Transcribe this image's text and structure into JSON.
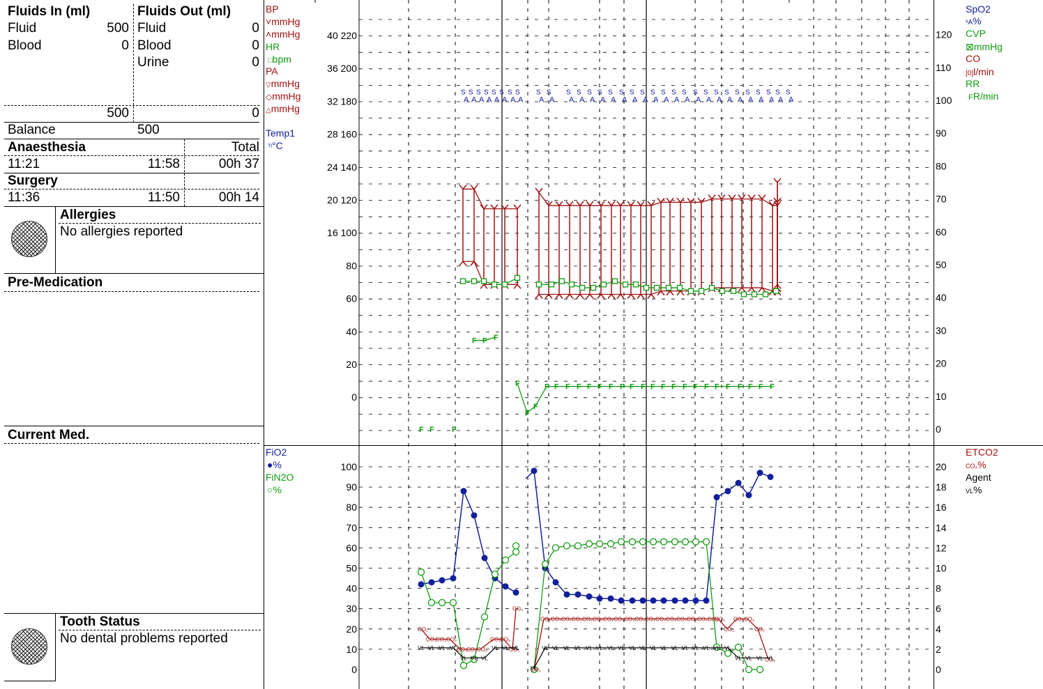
{
  "fluids_in": {
    "title": "Fluids In (ml)",
    "rows": [
      {
        "label": "Fluid",
        "value": "500"
      },
      {
        "label": "Blood",
        "value": "0"
      }
    ],
    "total": "500"
  },
  "fluids_out": {
    "title": "Fluids Out (ml)",
    "rows": [
      {
        "label": "Fluid",
        "value": "0"
      },
      {
        "label": "Blood",
        "value": "0"
      },
      {
        "label": "Urine",
        "value": "0"
      }
    ],
    "total": "0"
  },
  "balance": {
    "label": "Balance",
    "value": "500"
  },
  "anaesthesia": {
    "title": "Anaesthesia",
    "total_label": "Total",
    "start": "11:21",
    "end": "11:58",
    "total": "00h 37"
  },
  "surgery": {
    "title": "Surgery",
    "start": "11:36",
    "end": "11:50",
    "total": "00h 14"
  },
  "allergies": {
    "title": "Allergies",
    "text": "No allergies reported"
  },
  "premedication": {
    "title": "Pre-Medication"
  },
  "current_med": {
    "title": "Current Med."
  },
  "tooth_status": {
    "title": "Tooth Status",
    "text": "No dental problems reported"
  },
  "upper_left_legend": {
    "bp": {
      "name": "BP",
      "unit1": "mmHg",
      "unit2": "mmHg"
    },
    "hr": {
      "name": "HR",
      "unit": "bpm"
    },
    "pa": {
      "name": "PA",
      "unit1": "mmHg",
      "unit2": "mmHg",
      "unit3": "mmHg"
    },
    "temp": {
      "name": "Temp1",
      "unit": "°C"
    }
  },
  "upper_right_legend": {
    "spo2": {
      "name": "SpO2",
      "unit": "%"
    },
    "cvp": {
      "name": "CVP",
      "unit": "mmHg"
    },
    "co": {
      "name": "CO",
      "unit": "l/min"
    },
    "rr": {
      "name": "RR",
      "unit": "R/min"
    }
  },
  "lower_left_legend": {
    "fio2": {
      "name": "FiO2",
      "unit": "%"
    },
    "fin2o": {
      "name": "FiN2O",
      "unit": "%"
    }
  },
  "lower_right_legend": {
    "etco2": {
      "name": "ETCO2",
      "unit": "%"
    },
    "agent": {
      "name": "Agent",
      "unit": "%"
    }
  },
  "colors": {
    "red": "#a01010",
    "green": "#119a11",
    "blue": "#12209a",
    "black": "#000000"
  },
  "chart_data": [
    {
      "type": "line",
      "panel": "vital-signs",
      "left_axis_ticks": [
        "40 220",
        "36 200",
        "32 180",
        "28 160",
        "24 140",
        "20 120",
        "16 100",
        "80",
        "60",
        "40",
        "20",
        "0"
      ],
      "right_axis_ticks": [
        "120",
        "110",
        "100",
        "90",
        "80",
        "70",
        "60",
        "50",
        "40",
        "30",
        "20",
        "10",
        "0"
      ],
      "ylim_right": [
        0,
        120
      ],
      "grid": true,
      "series": [
        {
          "name": "SpO2",
          "axis": "right",
          "values": [
            101,
            101,
            101,
            101,
            101,
            101,
            101,
            101,
            null,
            101,
            101,
            null,
            101,
            101,
            101,
            101,
            101,
            101,
            101,
            101,
            101,
            101,
            101,
            101,
            101,
            101,
            101,
            101,
            101,
            101,
            101,
            101,
            101,
            101,
            101
          ]
        },
        {
          "name": "BP",
          "kind": "range",
          "values": [
            [
              51,
              73
            ],
            [
              51,
              73
            ],
            [
              44,
              67
            ],
            [
              44,
              67
            ],
            [
              44,
              67
            ],
            [
              44,
              67
            ],
            null,
            [
              41,
              72
            ],
            [
              41,
              68
            ],
            [
              41,
              68
            ],
            [
              41,
              68
            ],
            [
              41,
              68
            ],
            [
              41,
              68
            ],
            [
              41,
              68
            ],
            [
              41,
              68
            ],
            [
              41,
              68
            ],
            [
              41,
              68
            ],
            [
              41,
              68
            ],
            [
              41,
              68
            ],
            [
              42,
              69
            ],
            [
              42,
              69
            ],
            [
              42,
              69
            ],
            [
              42,
              69
            ],
            [
              42,
              69
            ],
            [
              43,
              70
            ],
            [
              43,
              70
            ],
            [
              43,
              70
            ],
            [
              43,
              70
            ],
            [
              43,
              70
            ],
            [
              43,
              70
            ],
            [
              42,
              68
            ],
            [
              42,
              68
            ],
            [
              43,
              69
            ],
            [
              43,
              69
            ],
            [
              43,
              69
            ],
            [
              44,
              75
            ]
          ]
        },
        {
          "name": "HR",
          "axis": "right",
          "values": [
            45,
            45,
            45,
            44,
            44,
            46,
            null,
            44,
            44,
            45,
            44,
            43,
            43,
            44,
            45,
            44,
            44,
            43,
            43,
            43,
            43,
            42,
            42,
            43,
            42,
            42,
            41,
            41,
            41,
            42,
            44,
            44,
            44,
            44,
            42
          ]
        },
        {
          "name": "RR",
          "axis": "right",
          "values": [
            0,
            0,
            0,
            null,
            null,
            null,
            27,
            27,
            28,
            null,
            null,
            null,
            null,
            14,
            5,
            7,
            13,
            13,
            13,
            13,
            13,
            13,
            13,
            13,
            13,
            13,
            13,
            13,
            13,
            13,
            13,
            13,
            13,
            13,
            13,
            13,
            13,
            13,
            13,
            7,
            4,
            9,
            6,
            10
          ]
        }
      ]
    },
    {
      "type": "line",
      "panel": "gases",
      "left_axis_ticks": [
        "100",
        "90",
        "80",
        "70",
        "60",
        "50",
        "40",
        "30",
        "20",
        "10",
        "0"
      ],
      "right_axis_ticks": [
        "20",
        "18",
        "16",
        "14",
        "12",
        "10",
        "8",
        "6",
        "4",
        "2",
        "0"
      ],
      "ylim_left": [
        0,
        100
      ],
      "ylim_right": [
        0,
        20
      ],
      "grid": true,
      "series": [
        {
          "name": "FiO2",
          "values": [
            42,
            43,
            44,
            45,
            88,
            76,
            55,
            45,
            41,
            38,
            null,
            98,
            50,
            43,
            37,
            37,
            36,
            35,
            35,
            34,
            34,
            34,
            34,
            34,
            34,
            34,
            34,
            34,
            85,
            88,
            92,
            86,
            97,
            95
          ]
        },
        {
          "name": "FiN2O",
          "values": [
            48,
            33,
            33,
            33,
            2,
            5,
            26,
            47,
            54,
            58,
            61,
            null,
            0,
            52,
            60,
            61,
            61,
            62,
            62,
            62,
            63,
            63,
            63,
            63,
            63,
            63,
            63,
            63,
            63,
            11,
            8,
            11,
            0,
            0
          ]
        },
        {
          "name": "ETCO2",
          "values": [
            4,
            3,
            3,
            3,
            2,
            2,
            2,
            3,
            3,
            2,
            6,
            null,
            0,
            5,
            5,
            5,
            5,
            5,
            5,
            5,
            5,
            5,
            5,
            5,
            5,
            5,
            5,
            5,
            5,
            5,
            5,
            4,
            5,
            5,
            4,
            1
          ]
        },
        {
          "name": "Agent",
          "values": [
            2,
            2,
            2,
            2,
            1,
            1,
            1,
            2,
            2,
            2,
            2,
            null,
            0,
            2,
            2,
            2,
            2,
            2,
            2,
            2,
            2,
            2,
            2,
            2,
            2,
            2,
            2,
            2,
            2,
            2,
            2,
            1,
            1,
            1,
            1
          ]
        }
      ]
    }
  ]
}
